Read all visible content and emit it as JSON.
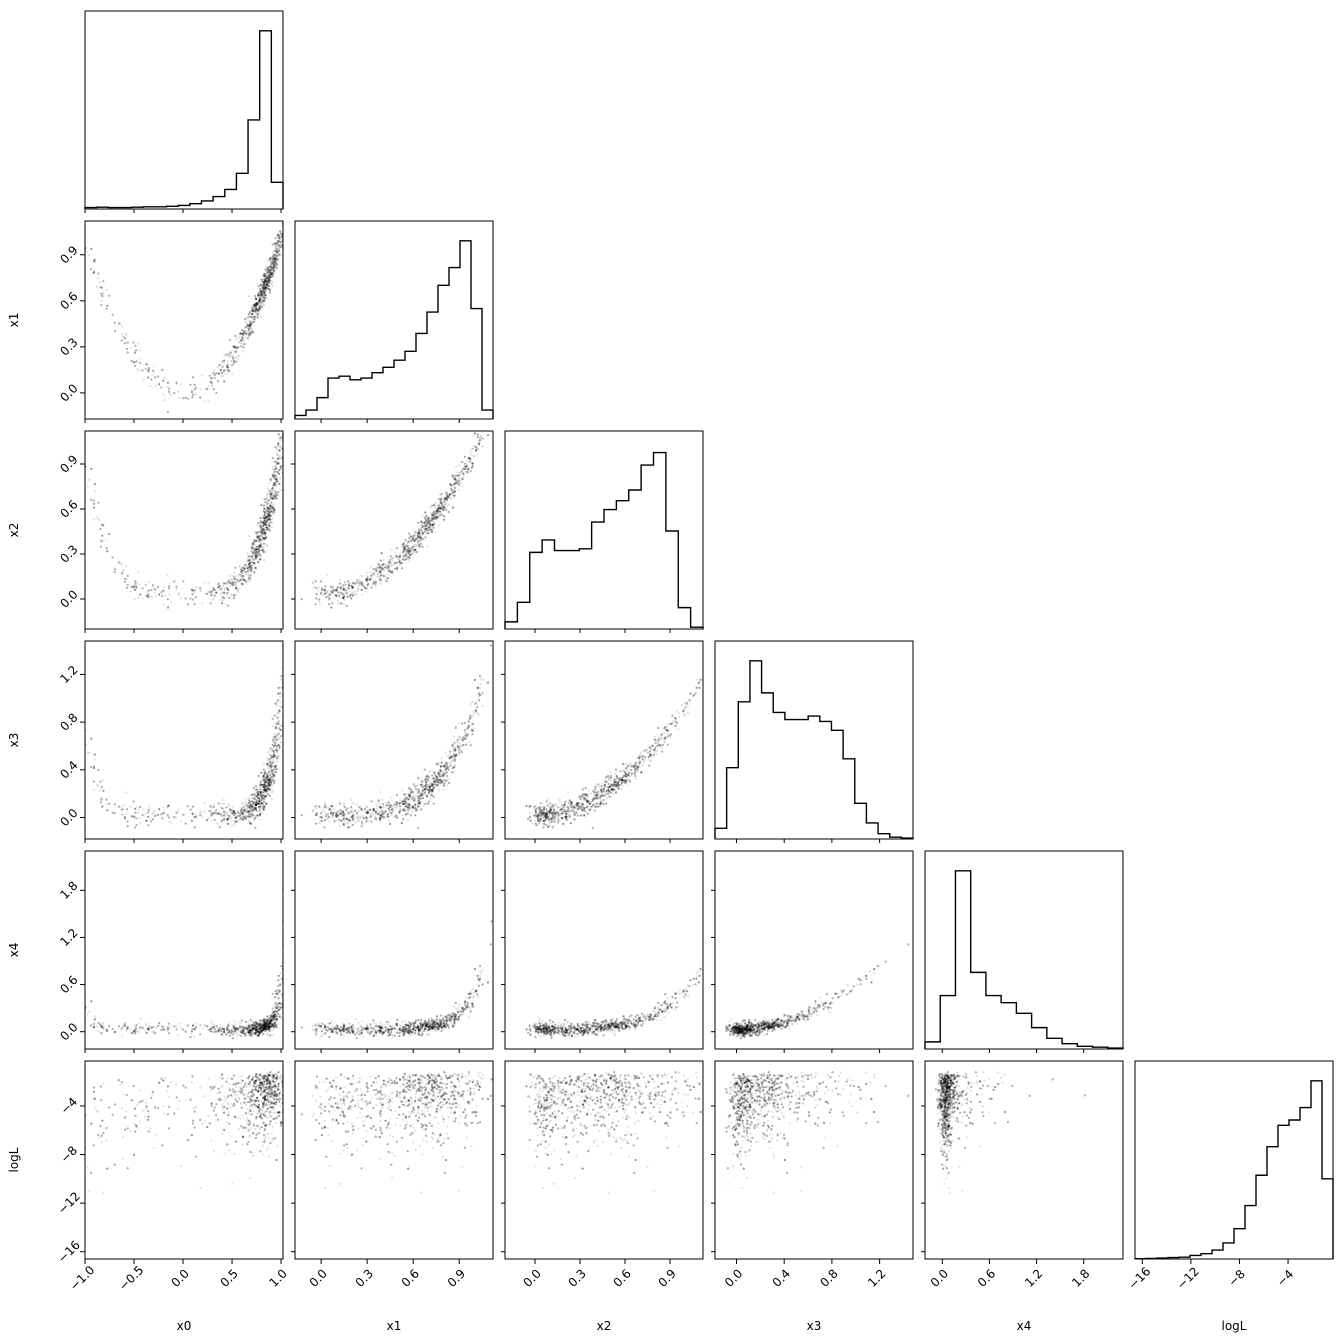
{
  "chart_data": {
    "type": "corner",
    "parameters": [
      "x0",
      "x1",
      "x2",
      "x3",
      "x4",
      "logL"
    ],
    "ranges": [
      [
        -1.0,
        1.02
      ],
      [
        -0.17,
        1.12
      ],
      [
        -0.2,
        1.12
      ],
      [
        -0.18,
        1.48
      ],
      [
        -0.22,
        2.3
      ],
      [
        -16.6,
        -0.3
      ]
    ],
    "ticks": [
      [
        "−1.0",
        "−0.5",
        "0.0",
        "0.5",
        "1.0"
      ],
      [
        "0.0",
        "0.3",
        "0.6",
        "0.9"
      ],
      [
        "0.0",
        "0.3",
        "0.6",
        "0.9"
      ],
      [
        "0.0",
        "0.4",
        "0.8",
        "1.2"
      ],
      [
        "0.0",
        "0.6",
        "1.2",
        "1.8"
      ],
      [
        "−16",
        "−12",
        "−8",
        "−4"
      ]
    ],
    "tick_values": [
      [
        -1.0,
        -0.5,
        0.0,
        0.5,
        1.0
      ],
      [
        0.0,
        0.3,
        0.6,
        0.9
      ],
      [
        0.0,
        0.3,
        0.6,
        0.9
      ],
      [
        0.0,
        0.4,
        0.8,
        1.2
      ],
      [
        0.0,
        0.6,
        1.2,
        1.8
      ],
      [
        -16,
        -12,
        -8,
        -4
      ]
    ],
    "histograms": [
      [
        0.008,
        0.01,
        0.008,
        0.008,
        0.01,
        0.012,
        0.012,
        0.015,
        0.02,
        0.03,
        0.045,
        0.07,
        0.11,
        0.2,
        0.5,
        1.0,
        0.15
      ],
      [
        0.02,
        0.05,
        0.12,
        0.23,
        0.24,
        0.22,
        0.23,
        0.26,
        0.29,
        0.33,
        0.38,
        0.48,
        0.6,
        0.75,
        0.85,
        1.0,
        0.62,
        0.05
      ],
      [
        0.04,
        0.15,
        0.43,
        0.5,
        0.44,
        0.44,
        0.45,
        0.6,
        0.67,
        0.72,
        0.78,
        0.92,
        0.99,
        0.55,
        0.12,
        0.01
      ],
      [
        0.06,
        0.4,
        0.77,
        1.0,
        0.82,
        0.71,
        0.67,
        0.67,
        0.69,
        0.66,
        0.61,
        0.45,
        0.2,
        0.09,
        0.03,
        0.01,
        0.005
      ],
      [
        0.04,
        0.3,
        1.0,
        0.43,
        0.3,
        0.26,
        0.2,
        0.12,
        0.06,
        0.03,
        0.015,
        0.01,
        0.005
      ],
      [
        0.002,
        0.003,
        0.005,
        0.008,
        0.01,
        0.02,
        0.03,
        0.05,
        0.09,
        0.17,
        0.3,
        0.47,
        0.63,
        0.75,
        0.78,
        0.85,
        1.0,
        0.45
      ]
    ],
    "histogram_ranges": [
      [
        -1.0,
        1.02
      ],
      [
        -0.17,
        1.12
      ],
      [
        -0.2,
        1.12
      ],
      [
        -0.18,
        1.48
      ],
      [
        -0.22,
        2.3
      ],
      [
        -16.6,
        -0.3
      ]
    ],
    "curve_x1_vs_x0": "x1 ≈ x0² (parabolic ridge)",
    "grid": false,
    "xlabel": "",
    "ylabel": "",
    "title": ""
  },
  "colors": {
    "points": "#000000",
    "contour": "#000000",
    "axes": "#000000",
    "background": "#ffffff"
  }
}
